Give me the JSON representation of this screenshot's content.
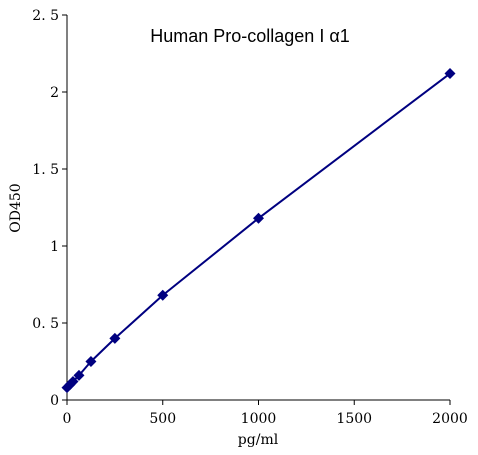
{
  "chart_data": {
    "type": "line",
    "title": "Human Pro-collagen I α1",
    "xlabel": "pg/ml",
    "ylabel": "OD450",
    "xlim": [
      0,
      2000
    ],
    "ylim": [
      0,
      2.5
    ],
    "x_ticks": [
      "0",
      "500",
      "1000",
      "1500",
      "2000"
    ],
    "y_ticks": [
      "0",
      "0. 5",
      "1",
      "1. 5",
      "2",
      "2. 5"
    ],
    "grid": false,
    "legend": "none",
    "marker": "diamond",
    "line_color": "#000080",
    "series": [
      {
        "x": [
          0,
          15.6,
          31.25,
          62.5,
          125,
          250,
          500,
          1000,
          2000
        ],
        "y": [
          0.08,
          0.1,
          0.12,
          0.16,
          0.25,
          0.4,
          0.68,
          1.18,
          2.12
        ]
      }
    ]
  }
}
